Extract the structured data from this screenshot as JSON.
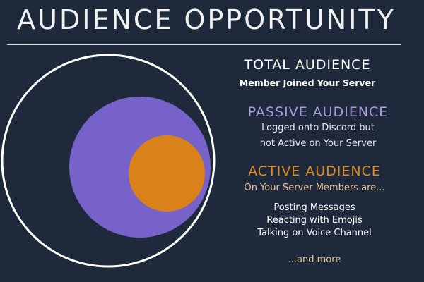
{
  "title": "AUDIENCE OPPORTUNITY",
  "colors": {
    "background": "#1e2a3b",
    "total": "#ffffff",
    "passive": "#7762c9",
    "active": "#d9821a"
  },
  "segments": {
    "total": {
      "heading": "TOTAL AUDIENCE",
      "description": "Member Joined Your Server"
    },
    "passive": {
      "heading": "PASSIVE AUDIENCE",
      "description_lines": [
        "Logged onto Discord but",
        "not Active on Your Server"
      ]
    },
    "active": {
      "heading": "ACTIVE AUDIENCE",
      "description": "On Your Server Members are...",
      "activities": [
        "Posting Messages",
        "Reacting with Emojis",
        "Talking on Voice Channel"
      ],
      "more": "...and more"
    }
  }
}
